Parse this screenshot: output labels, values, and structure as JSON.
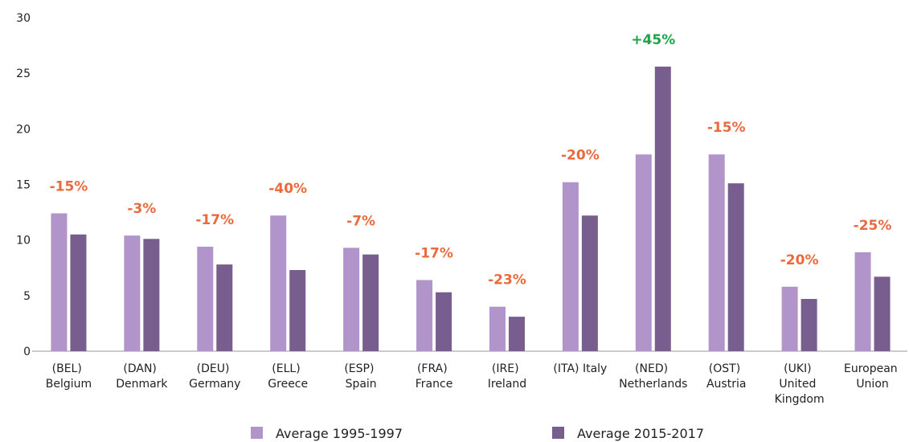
{
  "chart_data": {
    "type": "bar",
    "categories": [
      "(BEL) Belgium",
      "(DAN) Denmark",
      "(DEU) Germany",
      "(ELL) Greece",
      "(ESP) Spain",
      "(FRA) France",
      "(IRE) Ireland",
      "(ITA) Italy",
      "(NED) Netherlands",
      "(OST) Austria",
      "(UKI) United Kingdom",
      "European Union"
    ],
    "series": [
      {
        "name": "Average 1995-1997",
        "color": "#b194c9",
        "values": [
          12.4,
          10.4,
          9.4,
          12.2,
          9.3,
          6.4,
          4.0,
          15.2,
          17.7,
          17.7,
          5.8,
          8.9
        ]
      },
      {
        "name": "Average 2015-2017",
        "color": "#775e8f",
        "values": [
          10.5,
          10.1,
          7.8,
          7.3,
          8.7,
          5.3,
          3.1,
          12.2,
          25.6,
          15.1,
          4.7,
          6.7
        ]
      }
    ],
    "annotations": [
      {
        "text": "-15%",
        "color": "#ea6a3e"
      },
      {
        "text": "-3%",
        "color": "#ea6a3e"
      },
      {
        "text": "-17%",
        "color": "#ea6a3e"
      },
      {
        "text": "-40%",
        "color": "#ea6a3e"
      },
      {
        "text": "-7%",
        "color": "#ea6a3e"
      },
      {
        "text": "-17%",
        "color": "#ea6a3e"
      },
      {
        "text": "-23%",
        "color": "#ea6a3e"
      },
      {
        "text": "-20%",
        "color": "#ea6a3e"
      },
      {
        "text": "+45%",
        "color": "#1ea34a"
      },
      {
        "text": "-15%",
        "color": "#ea6a3e"
      },
      {
        "text": "-20%",
        "color": "#ea6a3e"
      },
      {
        "text": "-25%",
        "color": "#ea6a3e"
      }
    ],
    "ylim": [
      0,
      30
    ],
    "yticks": [
      0,
      5,
      10,
      15,
      20,
      25,
      30
    ],
    "grid": false
  }
}
